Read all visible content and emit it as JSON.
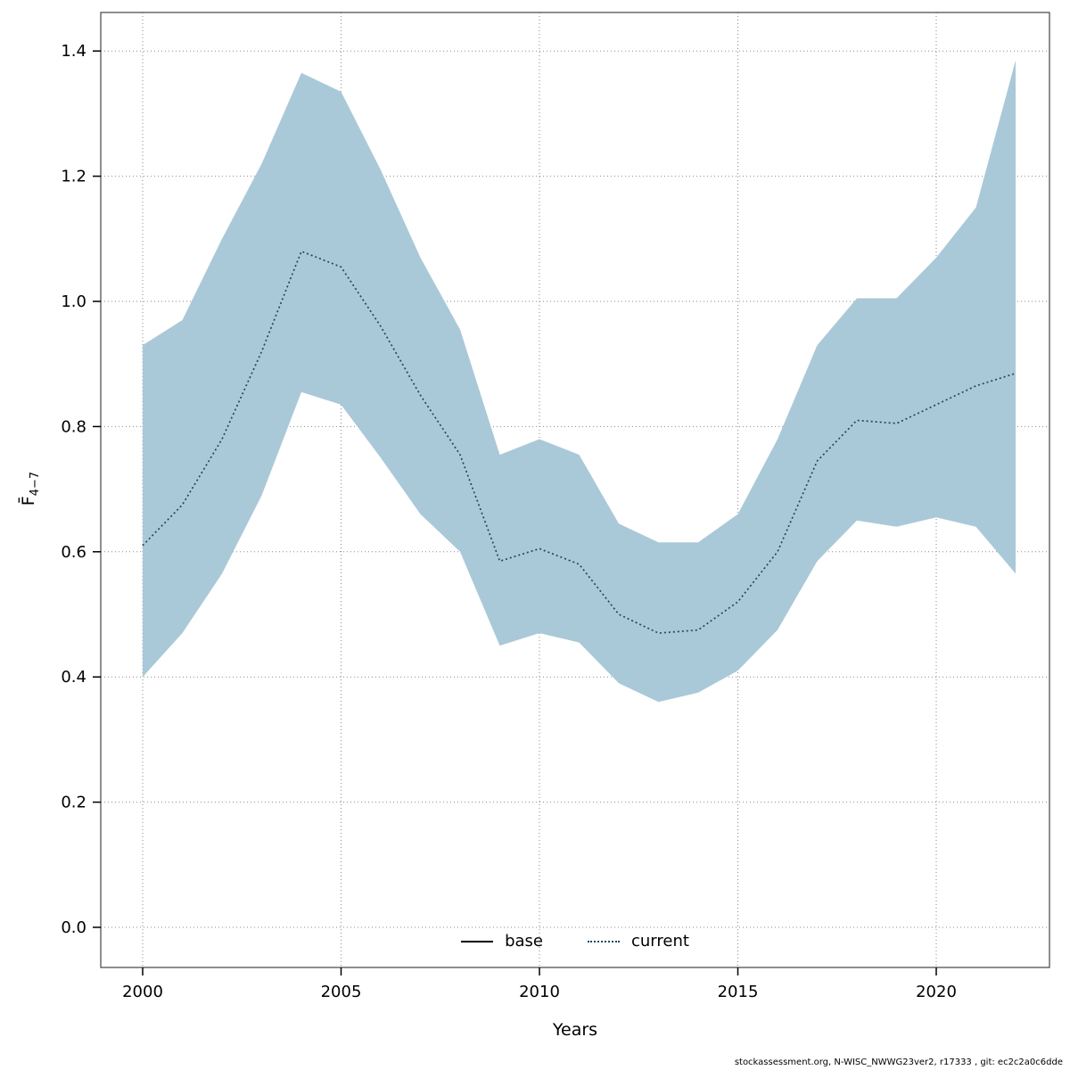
{
  "chart_data": {
    "type": "line",
    "title": "",
    "xlabel": "Years",
    "ylabel": {
      "base": "F̄",
      "sub": "4−7"
    },
    "x": [
      2000,
      2001,
      2002,
      2003,
      2004,
      2005,
      2006,
      2007,
      2008,
      2009,
      2010,
      2011,
      2012,
      2013,
      2014,
      2015,
      2016,
      2017,
      2018,
      2019,
      2020,
      2021,
      2022
    ],
    "series": [
      {
        "name": "current",
        "style": "dotted",
        "color": "#1b4a63",
        "values": [
          0.61,
          0.675,
          0.78,
          0.92,
          1.08,
          1.055,
          0.96,
          0.85,
          0.755,
          0.585,
          0.605,
          0.58,
          0.5,
          0.47,
          0.475,
          0.52,
          0.6,
          0.745,
          0.81,
          0.805,
          0.835,
          0.865,
          0.885
        ]
      }
    ],
    "band": {
      "color": "#aac9d8",
      "upper": [
        0.93,
        0.97,
        1.1,
        1.22,
        1.365,
        1.335,
        1.21,
        1.07,
        0.955,
        0.755,
        0.78,
        0.755,
        0.645,
        0.615,
        0.615,
        0.66,
        0.78,
        0.93,
        1.005,
        1.005,
        1.07,
        1.15,
        1.385
      ],
      "lower": [
        0.4,
        0.47,
        0.565,
        0.69,
        0.855,
        0.835,
        0.75,
        0.66,
        0.6,
        0.45,
        0.47,
        0.455,
        0.39,
        0.36,
        0.375,
        0.41,
        0.475,
        0.585,
        0.65,
        0.64,
        0.655,
        0.64,
        0.565
      ]
    },
    "x_ticks": [
      2000,
      2005,
      2010,
      2015,
      2020
    ],
    "y_ticks": [
      0.0,
      0.2,
      0.4,
      0.6,
      0.8,
      1.0,
      1.2,
      1.4
    ],
    "xlim": [
      1998.9,
      2022.9
    ],
    "ylim": [
      -0.06,
      1.46
    ],
    "grid": true,
    "legend": [
      {
        "label": "base",
        "style": "solid",
        "color": "#000000"
      },
      {
        "label": "current",
        "style": "dotted",
        "color": "#1b4a63"
      }
    ]
  },
  "footer": {
    "text": "stockassessment.org, N-WISC_NWWG23ver2, r17333 , git: ec2c2a0c6dde"
  }
}
